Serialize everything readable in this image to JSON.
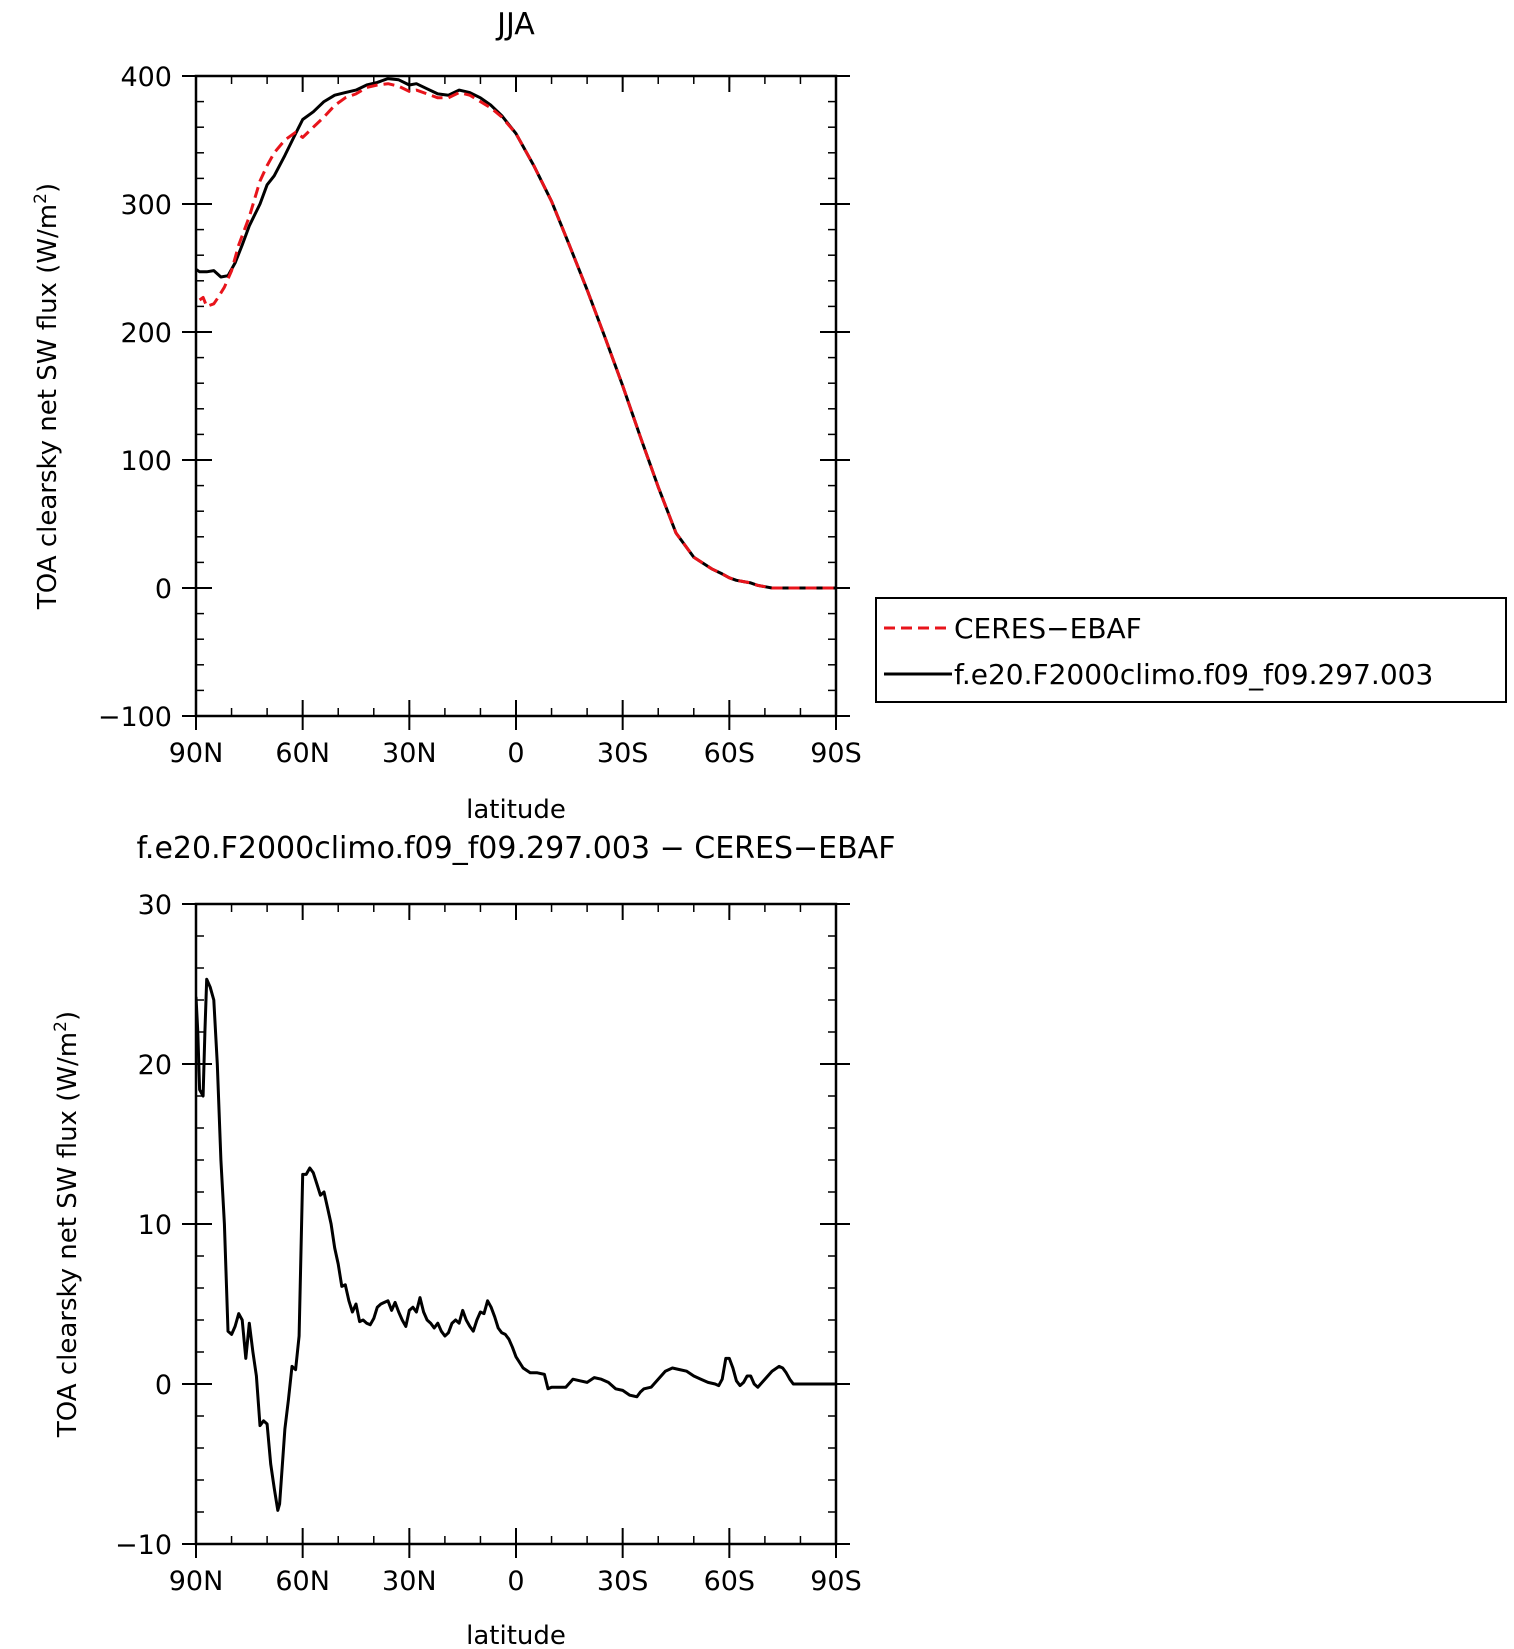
{
  "chart_data": [
    {
      "type": "line",
      "title": "JJA",
      "xlabel": "latitude",
      "ylabel": "TOA clearsky net SW flux (W/m²)",
      "ylabel_parts": {
        "main": "TOA clearsky net SW flux (W/m",
        "sup": "2",
        "end": ")"
      },
      "xlim": [
        90,
        -90
      ],
      "ylim": [
        -100,
        400
      ],
      "x_ticks": [
        90,
        60,
        30,
        0,
        -30,
        -60,
        -90
      ],
      "x_tick_labels": [
        "90N",
        "60N",
        "30N",
        "0",
        "30S",
        "60S",
        "90S"
      ],
      "y_ticks": [
        -100,
        0,
        100,
        200,
        300,
        400
      ],
      "y_tick_labels": [
        "−100",
        "0",
        "100",
        "200",
        "300",
        "400"
      ],
      "legend": {
        "position": "right",
        "entries": [
          "CERES−EBAF",
          "f.e20.F2000climo.f09_f09.297.003"
        ]
      },
      "series": [
        {
          "name": "CERES−EBAF",
          "color": "#e8141b",
          "dash": "dashed",
          "x": [
            89,
            88,
            87,
            86,
            85,
            84,
            82,
            80,
            78,
            75,
            72,
            70,
            68,
            65,
            62,
            60,
            57,
            54,
            51,
            48,
            45,
            42,
            39,
            36,
            33,
            30,
            28,
            25,
            22,
            19,
            16,
            13,
            10,
            7,
            4,
            0,
            -5,
            -10,
            -15,
            -20,
            -25,
            -30,
            -35,
            -40,
            -45,
            -50,
            -55,
            -58,
            -60,
            -62,
            -64,
            -66,
            -68,
            -70,
            -72,
            -75,
            -78,
            -80,
            -85,
            -90
          ],
          "y": [
            225,
            227,
            220,
            221,
            222,
            226,
            235,
            248,
            268,
            290,
            318,
            330,
            340,
            350,
            356,
            352,
            360,
            368,
            377,
            383,
            386,
            391,
            393,
            394,
            392,
            388,
            389,
            386,
            383,
            383,
            387,
            385,
            380,
            375,
            368,
            355,
            330,
            302,
            268,
            233,
            196,
            158,
            118,
            79,
            43,
            24,
            15,
            11,
            8,
            6,
            5,
            4,
            2,
            1,
            0,
            0,
            0,
            0,
            0,
            0
          ]
        },
        {
          "name": "f.e20.F2000climo.f09_f09.297.003",
          "color": "#000000",
          "dash": "solid",
          "x": [
            90,
            89,
            87,
            85,
            83,
            81,
            79,
            77,
            75,
            72,
            70,
            68,
            65,
            62,
            60,
            57,
            54,
            51,
            48,
            45,
            42,
            39,
            36,
            33,
            30,
            28,
            25,
            22,
            19,
            16,
            13,
            10,
            7,
            4,
            0,
            -5,
            -10,
            -15,
            -20,
            -25,
            -30,
            -35,
            -40,
            -45,
            -50,
            -55,
            -58,
            -60,
            -62,
            -64,
            -66,
            -68,
            -70,
            -72,
            -75,
            -78,
            -80,
            -85,
            -90
          ],
          "y": [
            249,
            247,
            247,
            248,
            243,
            244,
            254,
            268,
            283,
            300,
            315,
            322,
            338,
            355,
            366,
            372,
            380,
            385,
            387,
            389,
            393,
            395,
            398,
            397,
            393,
            394,
            390,
            386,
            385,
            389,
            387,
            383,
            377,
            369,
            355,
            330,
            302,
            268,
            233,
            196,
            158,
            118,
            79,
            43,
            24,
            15,
            11,
            8,
            6,
            5,
            4,
            2,
            1,
            0,
            0,
            0,
            0,
            0,
            0
          ]
        }
      ]
    },
    {
      "type": "line",
      "title": "f.e20.F2000climo.f09_f09.297.003 − CERES−EBAF",
      "xlabel": "latitude",
      "ylabel": "TOA clearsky net SW flux (W/m²)",
      "ylabel_parts": {
        "main": "TOA clearsky net SW flux (W/m",
        "sup": "2",
        "end": ")"
      },
      "xlim": [
        90,
        -90
      ],
      "ylim": [
        -10,
        30
      ],
      "x_ticks": [
        90,
        60,
        30,
        0,
        -30,
        -60,
        -90
      ],
      "x_tick_labels": [
        "90N",
        "60N",
        "30N",
        "0",
        "30S",
        "60S",
        "90S"
      ],
      "y_ticks": [
        -10,
        0,
        10,
        20,
        30
      ],
      "y_tick_labels": [
        "−10",
        "0",
        "10",
        "20",
        "30"
      ],
      "series": [
        {
          "color": "#000000",
          "dash": "solid",
          "x": [
            90,
            89.5,
            89,
            88,
            87.5,
            87,
            86,
            85,
            84,
            83,
            82,
            81,
            80,
            79,
            78,
            77,
            76,
            75,
            74,
            73,
            72,
            71,
            70,
            69,
            68,
            67,
            66.5,
            65,
            64,
            63,
            62,
            61,
            60,
            59,
            58,
            57,
            56,
            55,
            54,
            53,
            52,
            51,
            50,
            49,
            48,
            47,
            46,
            45,
            44,
            43,
            42,
            41,
            40,
            39,
            38,
            37,
            36,
            35,
            34,
            33,
            32,
            31,
            30,
            29,
            28,
            27,
            26,
            25,
            24,
            23,
            22,
            21,
            20,
            19,
            18,
            17,
            16,
            15,
            14,
            13,
            12,
            11,
            10,
            9,
            8,
            7,
            6,
            5,
            4,
            3,
            2,
            1,
            0,
            -2,
            -4,
            -6,
            -8,
            -9,
            -10,
            -12,
            -14,
            -16,
            -18,
            -20,
            -22,
            -24,
            -26,
            -28,
            -30,
            -32,
            -34,
            -35,
            -36,
            -38,
            -40,
            -42,
            -44,
            -46,
            -48,
            -50,
            -52,
            -54,
            -56,
            -57,
            -58,
            -59,
            -60,
            -61,
            -62,
            -63,
            -64,
            -65,
            -66,
            -67,
            -68,
            -70,
            -72,
            -74,
            -75,
            -76,
            -77,
            -78,
            -80,
            -85,
            -90
          ],
          "y": [
            24.2,
            22,
            18.4,
            18.0,
            22.0,
            25.3,
            24.8,
            24.0,
            20.0,
            14.0,
            10.0,
            3.3,
            3.1,
            3.6,
            4.4,
            4.0,
            1.6,
            3.8,
            2.0,
            0.5,
            -2.6,
            -2.3,
            -2.5,
            -5.0,
            -6.5,
            -7.9,
            -7.5,
            -2.8,
            -1.0,
            1.1,
            0.9,
            3.0,
            13.1,
            13.1,
            13.5,
            13.2,
            12.5,
            11.8,
            12.0,
            11.0,
            10.0,
            8.5,
            7.5,
            6.1,
            6.2,
            5.2,
            4.5,
            5.0,
            3.9,
            4.0,
            3.8,
            3.7,
            4.1,
            4.8,
            5.0,
            5.1,
            5.2,
            4.6,
            5.1,
            4.5,
            4.0,
            3.6,
            4.6,
            4.8,
            4.5,
            5.4,
            4.5,
            4.0,
            3.8,
            3.5,
            3.8,
            3.3,
            3.0,
            3.2,
            3.8,
            4.0,
            3.8,
            4.6,
            4.0,
            3.6,
            3.3,
            4.0,
            4.5,
            4.4,
            5.2,
            4.8,
            4.2,
            3.5,
            3.2,
            3.1,
            2.8,
            2.3,
            1.7,
            1.0,
            0.7,
            0.7,
            0.6,
            -0.3,
            -0.2,
            -0.2,
            -0.2,
            0.3,
            0.2,
            0.1,
            0.4,
            0.3,
            0.1,
            -0.3,
            -0.4,
            -0.7,
            -0.8,
            -0.5,
            -0.3,
            -0.2,
            0.3,
            0.8,
            1.0,
            0.9,
            0.8,
            0.5,
            0.3,
            0.1,
            0.0,
            -0.1,
            0.3,
            1.6,
            1.6,
            1.0,
            0.2,
            -0.1,
            0.1,
            0.5,
            0.5,
            0.0,
            -0.2,
            0.3,
            0.8,
            1.1,
            1.0,
            0.7,
            0.3,
            0.0,
            0.0,
            0.0,
            0.0
          ]
        }
      ]
    }
  ]
}
